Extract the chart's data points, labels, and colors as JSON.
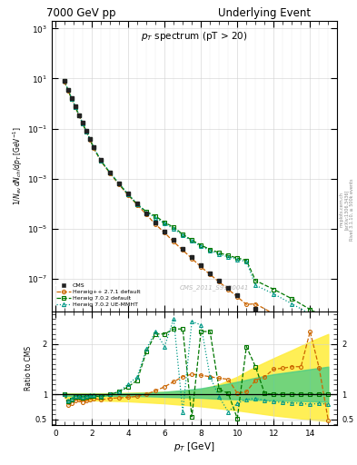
{
  "title_left": "7000 GeV pp",
  "title_right": "Underlying Event",
  "plot_title": "p_{T} spectrum (pT > 20)",
  "ylabel_top": "1/N_{ev} dN_{ch} / dp_{T} [GeV^{-1}]",
  "ylabel_bottom": "Ratio to CMS",
  "xlabel": "p_{T} [GeV]",
  "watermark": "CMS_2011_S9120041",
  "side_text1": "Rivet 3.1.10, ≥ 500k events",
  "side_text2": "[arXiv:1306.3436]",
  "side_text3": "mcplots.cern.ch",
  "cms_x": [
    0.5,
    0.7,
    0.9,
    1.1,
    1.3,
    1.5,
    1.7,
    1.9,
    2.1,
    2.5,
    3.0,
    3.5,
    4.0,
    4.5,
    5.0,
    5.5,
    6.0,
    6.5,
    7.0,
    7.5,
    8.0,
    8.5,
    9.0,
    9.5,
    10.0,
    11.0,
    12.0,
    13.0,
    14.0,
    15.0
  ],
  "cms_y": [
    8.0,
    3.5,
    1.6,
    0.75,
    0.35,
    0.17,
    0.08,
    0.038,
    0.018,
    0.0055,
    0.0018,
    0.00065,
    0.00025,
    0.0001,
    4.2e-05,
    1.8e-05,
    8e-06,
    3.5e-06,
    1.6e-06,
    7.5e-07,
    3.5e-07,
    1.7e-07,
    8.5e-08,
    4.2e-08,
    2.2e-08,
    6.5e-09,
    2.5e-09,
    1.1e-09,
    5e-10,
    2.5e-10
  ],
  "hpp_x": [
    0.5,
    0.7,
    0.9,
    1.1,
    1.3,
    1.5,
    1.7,
    1.9,
    2.1,
    2.5,
    3.0,
    3.5,
    4.0,
    4.5,
    5.0,
    5.5,
    6.0,
    6.5,
    7.0,
    7.5,
    8.0,
    8.5,
    9.0,
    9.5,
    10.0,
    10.5,
    11.0,
    12.0,
    13.0,
    14.0,
    15.0
  ],
  "hpp_y": [
    7.5,
    3.2,
    1.5,
    0.71,
    0.33,
    0.155,
    0.075,
    0.036,
    0.017,
    0.005,
    0.00165,
    0.00058,
    0.00022,
    9e-05,
    3.7e-05,
    1.5e-05,
    7e-06,
    3e-06,
    1.4e-06,
    6.5e-07,
    3e-07,
    1.5e-07,
    7.5e-08,
    3.8e-08,
    1.9e-08,
    9.5e-09,
    1e-08,
    4e-09,
    2e-09,
    9e-10,
    4.5e-10
  ],
  "h702d_x": [
    0.5,
    0.7,
    0.9,
    1.1,
    1.3,
    1.5,
    1.7,
    1.9,
    2.1,
    2.5,
    3.0,
    3.5,
    4.0,
    4.5,
    5.0,
    5.5,
    6.0,
    6.5,
    7.0,
    7.5,
    8.0,
    8.5,
    9.0,
    9.5,
    10.0,
    10.5,
    11.0,
    12.0,
    13.0,
    14.0,
    15.0
  ],
  "h702d_y": [
    7.8,
    3.4,
    1.55,
    0.73,
    0.34,
    0.16,
    0.077,
    0.037,
    0.0175,
    0.0052,
    0.00175,
    0.00062,
    0.000235,
    9.5e-05,
    4.8e-05,
    3.2e-05,
    1.8e-05,
    1.15e-05,
    6e-06,
    3.5e-06,
    2.2e-06,
    1.5e-06,
    1.1e-06,
    8.5e-07,
    6.8e-07,
    5.5e-07,
    8.5e-08,
    3.8e-08,
    1.6e-08,
    6e-09,
    2.5e-09
  ],
  "h702ue_x": [
    0.5,
    0.7,
    0.9,
    1.1,
    1.3,
    1.5,
    1.7,
    1.9,
    2.1,
    2.5,
    3.0,
    3.5,
    4.0,
    4.5,
    5.0,
    5.5,
    6.0,
    6.5,
    7.0,
    7.5,
    8.0,
    8.5,
    9.0,
    9.5,
    10.0,
    10.5,
    11.0,
    12.0,
    13.0,
    14.0,
    15.0
  ],
  "h702ue_y": [
    7.9,
    3.45,
    1.58,
    0.74,
    0.345,
    0.162,
    0.078,
    0.0375,
    0.0178,
    0.0053,
    0.00177,
    0.00063,
    0.000238,
    9.7e-05,
    4.5e-05,
    2.8e-05,
    1.6e-05,
    1e-05,
    5.5e-06,
    3.2e-06,
    2e-06,
    1.35e-06,
    9.5e-07,
    7.5e-07,
    6e-07,
    4.8e-07,
    5.5e-08,
    2.5e-08,
    1e-08,
    4e-09,
    1.6e-09
  ],
  "cms_color": "#222222",
  "hpp_color": "#cc6600",
  "h702d_color": "#007700",
  "h702ue_color": "#009988",
  "ratio_x": [
    0.5,
    0.7,
    0.9,
    1.1,
    1.3,
    1.5,
    1.7,
    1.9,
    2.1,
    2.5,
    3.0,
    3.5,
    4.0,
    4.5,
    5.0,
    5.5,
    6.0,
    6.5,
    7.0,
    7.5,
    8.0,
    8.5,
    9.0,
    9.5,
    10.0,
    10.5,
    11.0,
    11.5,
    12.0,
    12.5,
    13.0,
    13.5,
    14.0,
    14.5,
    15.0
  ],
  "hpp_ratio_y": [
    1.0,
    0.78,
    0.83,
    0.88,
    0.89,
    0.84,
    0.87,
    0.9,
    0.92,
    0.89,
    0.92,
    0.93,
    0.94,
    0.96,
    1.0,
    1.07,
    1.15,
    1.25,
    1.35,
    1.4,
    1.38,
    1.35,
    1.32,
    1.3,
    1.02,
    1.05,
    1.28,
    1.35,
    1.5,
    1.52,
    1.55,
    1.55,
    2.25,
    1.52,
    0.48
  ],
  "h702d_ratio_y": [
    1.0,
    0.86,
    0.9,
    0.94,
    0.95,
    0.93,
    0.95,
    0.97,
    0.97,
    0.95,
    1.0,
    1.05,
    1.15,
    1.28,
    1.85,
    2.2,
    2.2,
    2.3,
    2.3,
    0.55,
    2.25,
    2.25,
    1.1,
    1.02,
    0.52,
    1.95,
    1.55,
    1.02,
    1.0,
    1.0,
    1.0,
    1.0,
    1.0,
    1.0,
    1.0
  ],
  "h702ue_ratio_y": [
    1.0,
    0.88,
    0.92,
    0.96,
    0.97,
    0.94,
    0.97,
    0.98,
    0.98,
    0.96,
    1.0,
    1.05,
    1.2,
    1.35,
    1.9,
    2.25,
    1.95,
    2.5,
    0.65,
    2.45,
    2.38,
    1.35,
    0.95,
    0.65,
    0.82,
    0.9,
    0.92,
    0.88,
    0.85,
    0.84,
    0.83,
    0.82,
    0.8,
    0.82,
    0.8
  ],
  "yband_x": [
    0.5,
    1.0,
    2.0,
    3.0,
    4.0,
    5.0,
    6.0,
    7.0,
    8.0,
    9.0,
    10.0,
    11.0,
    12.0,
    13.0,
    14.0,
    15.0
  ],
  "yellow_lo": [
    0.93,
    0.9,
    0.88,
    0.87,
    0.86,
    0.84,
    0.82,
    0.79,
    0.76,
    0.72,
    0.68,
    0.63,
    0.58,
    0.54,
    0.5,
    0.47
  ],
  "yellow_hi": [
    1.02,
    1.02,
    1.02,
    1.02,
    1.03,
    1.04,
    1.05,
    1.07,
    1.1,
    1.2,
    1.35,
    1.55,
    1.72,
    1.88,
    2.05,
    2.2
  ],
  "green_lo": [
    0.97,
    0.97,
    0.97,
    0.97,
    0.97,
    0.96,
    0.95,
    0.94,
    0.93,
    0.91,
    0.9,
    0.89,
    0.88,
    0.87,
    0.86,
    0.85
  ],
  "green_hi": [
    1.01,
    1.01,
    1.01,
    1.01,
    1.02,
    1.03,
    1.05,
    1.08,
    1.12,
    1.18,
    1.25,
    1.33,
    1.4,
    1.45,
    1.5,
    1.55
  ]
}
